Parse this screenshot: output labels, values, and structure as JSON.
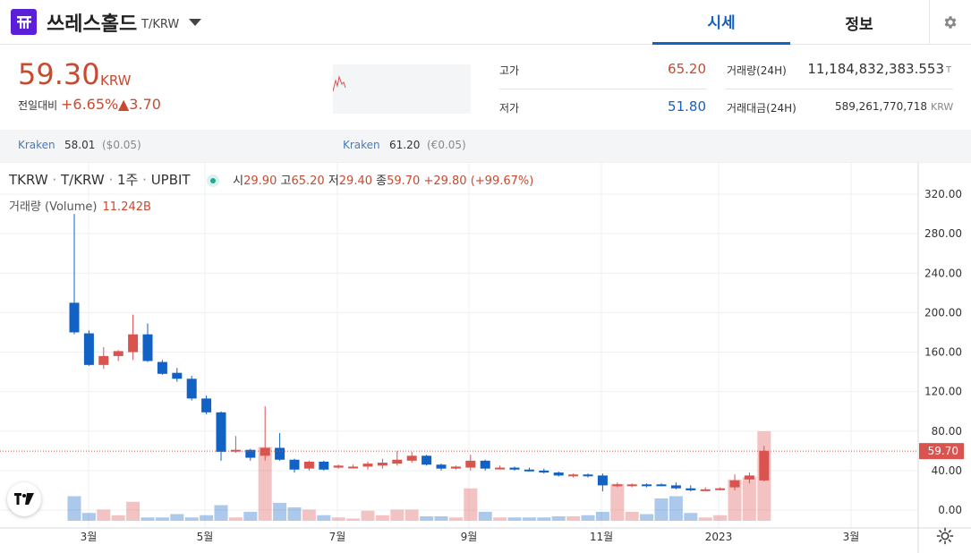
{
  "header": {
    "coin_name": "쓰레스홀드",
    "pair": "T/KRW",
    "tabs": [
      {
        "label": "시세"
      },
      {
        "label": "정보"
      }
    ]
  },
  "price": {
    "current": "59.30",
    "unit": "KRW",
    "change_label": "전일대비",
    "change_pct": "+6.65%",
    "change_abs": "▲3.70"
  },
  "stats": {
    "high_label": "고가",
    "high": "65.20",
    "low_label": "저가",
    "low": "51.80",
    "volume_label": "거래량(24H)",
    "volume": "11,184,832,383.553",
    "volume_unit": "T",
    "value_label": "거래대금(24H)",
    "value": "589,261,770,718",
    "value_unit": "KRW"
  },
  "exchanges": [
    {
      "name": "Kraken",
      "price": "58.01",
      "note": "($0.05)"
    },
    {
      "name": "Kraken",
      "price": "61.20",
      "note": "(€0.05)"
    }
  ],
  "chart_legend": {
    "symbol": "TKRW",
    "pair": "T/KRW",
    "interval": "1주",
    "exchange": "UPBIT",
    "open_label": "시",
    "open": "29.90",
    "high_label": "고",
    "high": "65.20",
    "low_label": "저",
    "low": "29.40",
    "close_label": "종",
    "close": "59.70",
    "change": "+29.80 (+99.67%)",
    "volume_label": "거래량 (Volume)",
    "volume_value": "11.242B"
  },
  "colors": {
    "up": "#d9534f",
    "down": "#1261c4",
    "accent": "#1261c4",
    "logo": "#5a1fd6"
  },
  "chart_data": {
    "type": "candlestick",
    "ylim": [
      -10,
      330
    ],
    "y_ticks": [
      "320.00",
      "280.00",
      "240.00",
      "200.00",
      "160.00",
      "120.00",
      "80.00",
      "40.00",
      "0.00"
    ],
    "y_tick_values": [
      320,
      280,
      240,
      200,
      160,
      120,
      80,
      40,
      0
    ],
    "x_ticks": [
      "3월",
      "5월",
      "7월",
      "9월",
      "11월",
      "2023",
      "3월"
    ],
    "last_price": "59.70",
    "last_price_value": 59.7,
    "candles": [
      {
        "o": 210,
        "h": 300,
        "l": 178,
        "c": 180,
        "v": 22
      },
      {
        "o": 179,
        "h": 182,
        "l": 146,
        "c": 147,
        "v": 7
      },
      {
        "o": 147,
        "h": 165,
        "l": 143,
        "c": 156,
        "v": 10
      },
      {
        "o": 156,
        "h": 162,
        "l": 151,
        "c": 161,
        "v": 5
      },
      {
        "o": 160,
        "h": 198,
        "l": 152,
        "c": 178,
        "v": 17
      },
      {
        "o": 178,
        "h": 189,
        "l": 150,
        "c": 151,
        "v": 3
      },
      {
        "o": 150,
        "h": 152,
        "l": 137,
        "c": 138,
        "v": 3
      },
      {
        "o": 139,
        "h": 144,
        "l": 130,
        "c": 133,
        "v": 6
      },
      {
        "o": 133,
        "h": 136,
        "l": 111,
        "c": 113,
        "v": 3
      },
      {
        "o": 113,
        "h": 116,
        "l": 97,
        "c": 99,
        "v": 5
      },
      {
        "o": 99,
        "h": 100,
        "l": 50,
        "c": 59,
        "v": 14
      },
      {
        "o": 60,
        "h": 75,
        "l": 58,
        "c": 61,
        "v": 3
      },
      {
        "o": 61,
        "h": 62,
        "l": 50,
        "c": 53,
        "v": 8
      },
      {
        "o": 55,
        "h": 105,
        "l": 50,
        "c": 63,
        "v": 66
      },
      {
        "o": 63,
        "h": 78,
        "l": 50,
        "c": 51,
        "v": 16
      },
      {
        "o": 51,
        "h": 52,
        "l": 38,
        "c": 41,
        "v": 12
      },
      {
        "o": 42,
        "h": 50,
        "l": 40,
        "c": 49,
        "v": 10
      },
      {
        "o": 49,
        "h": 50,
        "l": 40,
        "c": 41,
        "v": 5
      },
      {
        "o": 43,
        "h": 46,
        "l": 42,
        "c": 45,
        "v": 3
      },
      {
        "o": 44,
        "h": 46,
        "l": 42,
        "c": 44,
        "v": 2
      },
      {
        "o": 44,
        "h": 49,
        "l": 41,
        "c": 47,
        "v": 9
      },
      {
        "o": 45,
        "h": 52,
        "l": 42,
        "c": 48,
        "v": 5
      },
      {
        "o": 47,
        "h": 60,
        "l": 45,
        "c": 51,
        "v": 10
      },
      {
        "o": 50,
        "h": 59,
        "l": 48,
        "c": 55,
        "v": 10
      },
      {
        "o": 55,
        "h": 56,
        "l": 45,
        "c": 46,
        "v": 4
      },
      {
        "o": 46,
        "h": 47,
        "l": 40,
        "c": 42,
        "v": 4
      },
      {
        "o": 42,
        "h": 45,
        "l": 41,
        "c": 44,
        "v": 3
      },
      {
        "o": 43,
        "h": 56,
        "l": 40,
        "c": 50,
        "v": 29
      },
      {
        "o": 50,
        "h": 51,
        "l": 40,
        "c": 42,
        "v": 8
      },
      {
        "o": 42,
        "h": 45,
        "l": 41,
        "c": 43,
        "v": 3
      },
      {
        "o": 43,
        "h": 44,
        "l": 40,
        "c": 41,
        "v": 3
      },
      {
        "o": 41,
        "h": 43,
        "l": 39,
        "c": 40,
        "v": 3
      },
      {
        "o": 40,
        "h": 42,
        "l": 37,
        "c": 38,
        "v": 3
      },
      {
        "o": 38,
        "h": 39,
        "l": 34,
        "c": 35,
        "v": 4
      },
      {
        "o": 35,
        "h": 37,
        "l": 33,
        "c": 36,
        "v": 4
      },
      {
        "o": 36,
        "h": 37,
        "l": 33,
        "c": 35,
        "v": 5
      },
      {
        "o": 35,
        "h": 37,
        "l": 19,
        "c": 25,
        "v": 8
      },
      {
        "o": 25,
        "h": 28,
        "l": 23,
        "c": 26,
        "v": 33
      },
      {
        "o": 25,
        "h": 27,
        "l": 23,
        "c": 26,
        "v": 8
      },
      {
        "o": 26,
        "h": 27,
        "l": 23,
        "c": 25,
        "v": 6
      },
      {
        "o": 26,
        "h": 27,
        "l": 24,
        "c": 25,
        "v": 20
      },
      {
        "o": 25,
        "h": 28,
        "l": 21,
        "c": 22,
        "v": 22
      },
      {
        "o": 22,
        "h": 25,
        "l": 19,
        "c": 20,
        "v": 7
      },
      {
        "o": 21,
        "h": 23,
        "l": 20,
        "c": 21,
        "v": 3
      },
      {
        "o": 21,
        "h": 23,
        "l": 20,
        "c": 22,
        "v": 5
      },
      {
        "o": 23,
        "h": 36,
        "l": 20,
        "c": 30,
        "v": 37
      },
      {
        "o": 31,
        "h": 38,
        "l": 27,
        "c": 35,
        "v": 39
      },
      {
        "o": 30,
        "h": 65,
        "l": 29,
        "c": 60,
        "v": 80
      }
    ]
  }
}
